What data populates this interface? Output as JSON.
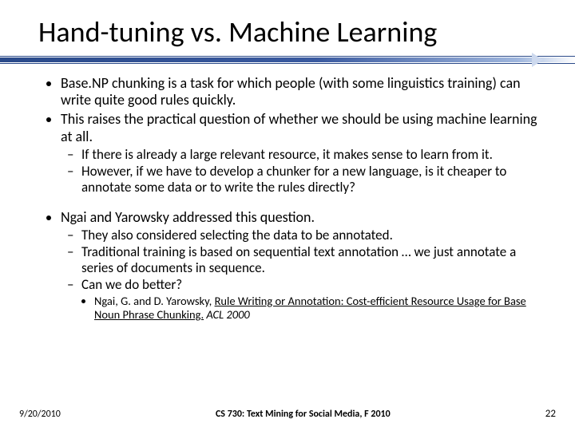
{
  "title": "Hand-tuning vs. Machine Learning",
  "bullets": {
    "b1": "Base.NP chunking is a task for which people (with some linguistics training) can write quite good rules quickly.",
    "b2": "This raises the practical question of whether we should be using machine learning at all.",
    "b2a": "If there is already a large relevant resource, it makes sense to learn from it.",
    "b2b": "However, if we have to develop a chunker for a new language, is it cheaper to annotate some data or to write the rules directly?",
    "b3": "Ngai and Yarowsky addressed this question.",
    "b3a": "They also considered selecting the data to be annotated.",
    "b3b": "Traditional training is based on sequential text annotation … we just annotate a series of documents in sequence.",
    "b3c": "Can we do better?",
    "cite_prefix": "Ngai, G. and D. Yarowsky, ",
    "cite_link": "Rule Writing or Annotation: Cost-efficient Resource Usage for Base Noun Phrase Chunking.",
    "cite_suffix_em": " ACL 2000"
  },
  "footer": {
    "date": "9/20/2010",
    "course": "CS 730: Text Mining for Social Media, F 2010",
    "page": "22"
  },
  "colors": {
    "accent": "#2a4a8a",
    "background": "#ffffff",
    "text": "#000000"
  },
  "typography": {
    "title_fontsize": 36,
    "body_fontsize": 18,
    "sub_fontsize": 17,
    "cite_fontsize": 14.5,
    "footer_fontsize": 12
  }
}
